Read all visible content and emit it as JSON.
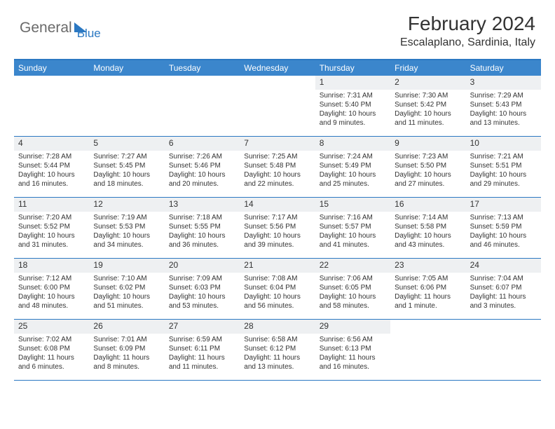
{
  "colors": {
    "accent": "#2b78c2",
    "header_bg": "#3b86cc",
    "header_text": "#ffffff",
    "daynum_bg": "#eef0f2",
    "text": "#333333",
    "logo_gray": "#6a6a6a"
  },
  "logo": {
    "part1": "General",
    "part2": "Blue"
  },
  "title": "February 2024",
  "location": "Escalaplano, Sardinia, Italy",
  "day_headers": [
    "Sunday",
    "Monday",
    "Tuesday",
    "Wednesday",
    "Thursday",
    "Friday",
    "Saturday"
  ],
  "fonts": {
    "title_size": 28,
    "location_size": 16,
    "header_size": 12,
    "daynum_size": 12,
    "body_size": 10
  },
  "weeks": [
    [
      {
        "empty": true
      },
      {
        "empty": true
      },
      {
        "empty": true
      },
      {
        "empty": true
      },
      {
        "num": "1",
        "sunrise": "Sunrise: 7:31 AM",
        "sunset": "Sunset: 5:40 PM",
        "day1": "Daylight: 10 hours",
        "day2": "and 9 minutes."
      },
      {
        "num": "2",
        "sunrise": "Sunrise: 7:30 AM",
        "sunset": "Sunset: 5:42 PM",
        "day1": "Daylight: 10 hours",
        "day2": "and 11 minutes."
      },
      {
        "num": "3",
        "sunrise": "Sunrise: 7:29 AM",
        "sunset": "Sunset: 5:43 PM",
        "day1": "Daylight: 10 hours",
        "day2": "and 13 minutes."
      }
    ],
    [
      {
        "num": "4",
        "sunrise": "Sunrise: 7:28 AM",
        "sunset": "Sunset: 5:44 PM",
        "day1": "Daylight: 10 hours",
        "day2": "and 16 minutes."
      },
      {
        "num": "5",
        "sunrise": "Sunrise: 7:27 AM",
        "sunset": "Sunset: 5:45 PM",
        "day1": "Daylight: 10 hours",
        "day2": "and 18 minutes."
      },
      {
        "num": "6",
        "sunrise": "Sunrise: 7:26 AM",
        "sunset": "Sunset: 5:46 PM",
        "day1": "Daylight: 10 hours",
        "day2": "and 20 minutes."
      },
      {
        "num": "7",
        "sunrise": "Sunrise: 7:25 AM",
        "sunset": "Sunset: 5:48 PM",
        "day1": "Daylight: 10 hours",
        "day2": "and 22 minutes."
      },
      {
        "num": "8",
        "sunrise": "Sunrise: 7:24 AM",
        "sunset": "Sunset: 5:49 PM",
        "day1": "Daylight: 10 hours",
        "day2": "and 25 minutes."
      },
      {
        "num": "9",
        "sunrise": "Sunrise: 7:23 AM",
        "sunset": "Sunset: 5:50 PM",
        "day1": "Daylight: 10 hours",
        "day2": "and 27 minutes."
      },
      {
        "num": "10",
        "sunrise": "Sunrise: 7:21 AM",
        "sunset": "Sunset: 5:51 PM",
        "day1": "Daylight: 10 hours",
        "day2": "and 29 minutes."
      }
    ],
    [
      {
        "num": "11",
        "sunrise": "Sunrise: 7:20 AM",
        "sunset": "Sunset: 5:52 PM",
        "day1": "Daylight: 10 hours",
        "day2": "and 31 minutes."
      },
      {
        "num": "12",
        "sunrise": "Sunrise: 7:19 AM",
        "sunset": "Sunset: 5:53 PM",
        "day1": "Daylight: 10 hours",
        "day2": "and 34 minutes."
      },
      {
        "num": "13",
        "sunrise": "Sunrise: 7:18 AM",
        "sunset": "Sunset: 5:55 PM",
        "day1": "Daylight: 10 hours",
        "day2": "and 36 minutes."
      },
      {
        "num": "14",
        "sunrise": "Sunrise: 7:17 AM",
        "sunset": "Sunset: 5:56 PM",
        "day1": "Daylight: 10 hours",
        "day2": "and 39 minutes."
      },
      {
        "num": "15",
        "sunrise": "Sunrise: 7:16 AM",
        "sunset": "Sunset: 5:57 PM",
        "day1": "Daylight: 10 hours",
        "day2": "and 41 minutes."
      },
      {
        "num": "16",
        "sunrise": "Sunrise: 7:14 AM",
        "sunset": "Sunset: 5:58 PM",
        "day1": "Daylight: 10 hours",
        "day2": "and 43 minutes."
      },
      {
        "num": "17",
        "sunrise": "Sunrise: 7:13 AM",
        "sunset": "Sunset: 5:59 PM",
        "day1": "Daylight: 10 hours",
        "day2": "and 46 minutes."
      }
    ],
    [
      {
        "num": "18",
        "sunrise": "Sunrise: 7:12 AM",
        "sunset": "Sunset: 6:00 PM",
        "day1": "Daylight: 10 hours",
        "day2": "and 48 minutes."
      },
      {
        "num": "19",
        "sunrise": "Sunrise: 7:10 AM",
        "sunset": "Sunset: 6:02 PM",
        "day1": "Daylight: 10 hours",
        "day2": "and 51 minutes."
      },
      {
        "num": "20",
        "sunrise": "Sunrise: 7:09 AM",
        "sunset": "Sunset: 6:03 PM",
        "day1": "Daylight: 10 hours",
        "day2": "and 53 minutes."
      },
      {
        "num": "21",
        "sunrise": "Sunrise: 7:08 AM",
        "sunset": "Sunset: 6:04 PM",
        "day1": "Daylight: 10 hours",
        "day2": "and 56 minutes."
      },
      {
        "num": "22",
        "sunrise": "Sunrise: 7:06 AM",
        "sunset": "Sunset: 6:05 PM",
        "day1": "Daylight: 10 hours",
        "day2": "and 58 minutes."
      },
      {
        "num": "23",
        "sunrise": "Sunrise: 7:05 AM",
        "sunset": "Sunset: 6:06 PM",
        "day1": "Daylight: 11 hours",
        "day2": "and 1 minute."
      },
      {
        "num": "24",
        "sunrise": "Sunrise: 7:04 AM",
        "sunset": "Sunset: 6:07 PM",
        "day1": "Daylight: 11 hours",
        "day2": "and 3 minutes."
      }
    ],
    [
      {
        "num": "25",
        "sunrise": "Sunrise: 7:02 AM",
        "sunset": "Sunset: 6:08 PM",
        "day1": "Daylight: 11 hours",
        "day2": "and 6 minutes."
      },
      {
        "num": "26",
        "sunrise": "Sunrise: 7:01 AM",
        "sunset": "Sunset: 6:09 PM",
        "day1": "Daylight: 11 hours",
        "day2": "and 8 minutes."
      },
      {
        "num": "27",
        "sunrise": "Sunrise: 6:59 AM",
        "sunset": "Sunset: 6:11 PM",
        "day1": "Daylight: 11 hours",
        "day2": "and 11 minutes."
      },
      {
        "num": "28",
        "sunrise": "Sunrise: 6:58 AM",
        "sunset": "Sunset: 6:12 PM",
        "day1": "Daylight: 11 hours",
        "day2": "and 13 minutes."
      },
      {
        "num": "29",
        "sunrise": "Sunrise: 6:56 AM",
        "sunset": "Sunset: 6:13 PM",
        "day1": "Daylight: 11 hours",
        "day2": "and 16 minutes."
      },
      {
        "empty": true
      },
      {
        "empty": true
      }
    ]
  ]
}
